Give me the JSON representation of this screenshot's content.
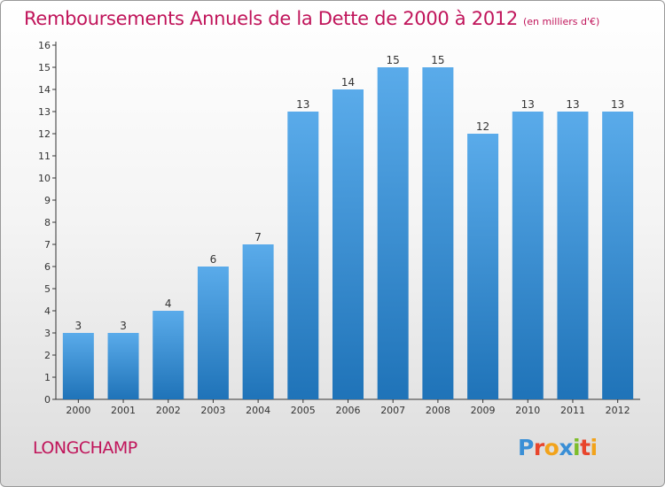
{
  "page": {
    "title": "Remboursements Annuels de la Dette de 2000 à 2012",
    "subtitle": "(en milliers d'€)",
    "commune": "LONGCHAMP",
    "logo": [
      "P",
      "r",
      "o",
      "x",
      "i",
      "t",
      "i"
    ]
  },
  "colors": {
    "title": "#c0145a",
    "bar_top": "#5aabea",
    "bar_bottom": "#1f73b8",
    "axis": "#333333"
  },
  "chart_data": {
    "type": "bar",
    "title": "Remboursements Annuels de la Dette de 2000 à 2012",
    "subtitle": "(en milliers d'€)",
    "categories": [
      "2000",
      "2001",
      "2002",
      "2003",
      "2004",
      "2005",
      "2006",
      "2007",
      "2008",
      "2009",
      "2010",
      "2011",
      "2012"
    ],
    "values": [
      3,
      3,
      4,
      6,
      7,
      13,
      14,
      15,
      15,
      12,
      13,
      13,
      13
    ],
    "ylim": [
      0,
      16
    ],
    "yticks": [
      0,
      1,
      2,
      3,
      4,
      5,
      6,
      7,
      8,
      9,
      10,
      11,
      12,
      13,
      14,
      15,
      16
    ],
    "grid": false,
    "data_labels": true
  }
}
